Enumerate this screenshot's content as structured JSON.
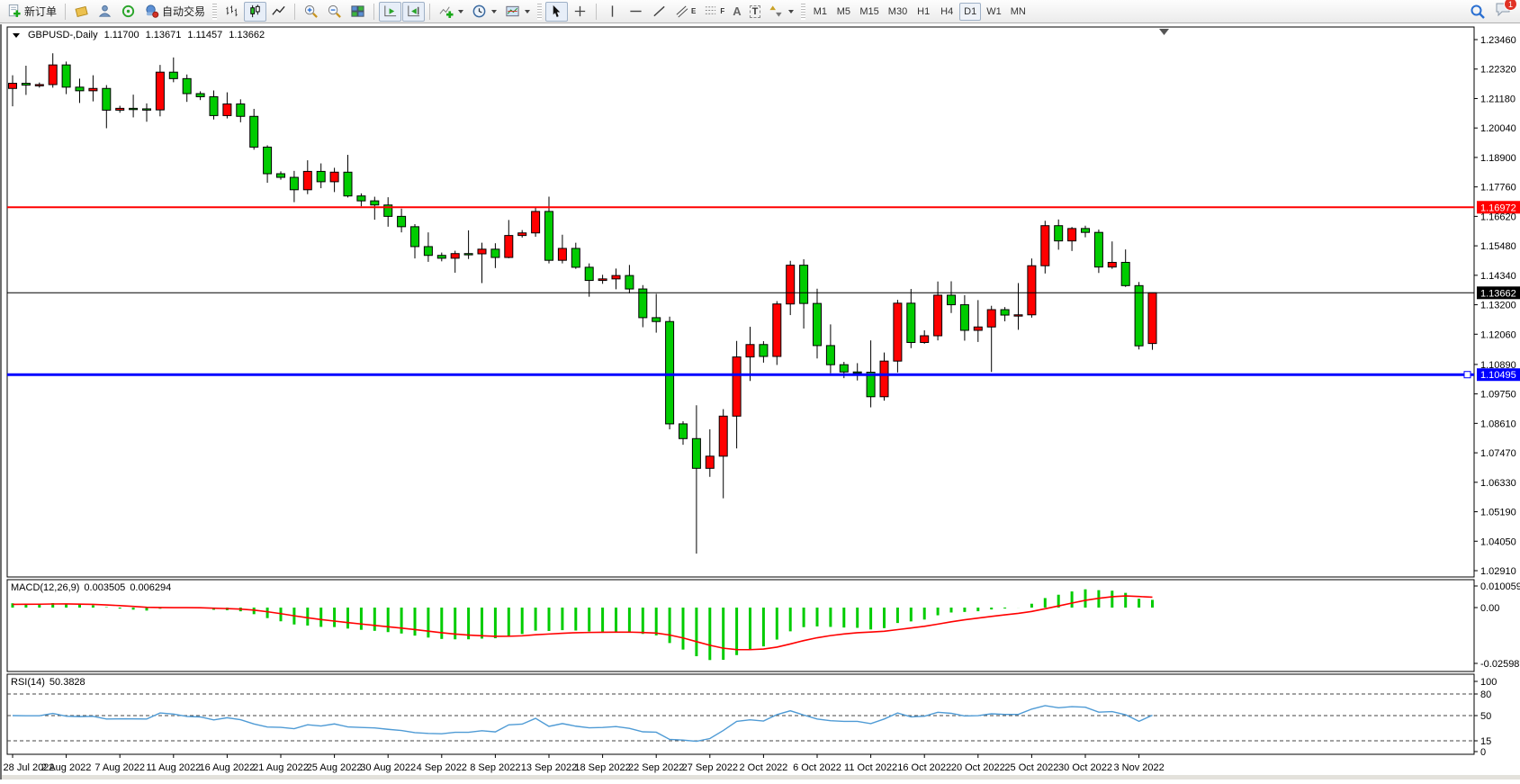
{
  "toolbar": {
    "new_order_label": "新订单",
    "autotrading_label": "自动交易",
    "timeframes": [
      "M1",
      "M5",
      "M15",
      "M30",
      "H1",
      "H4",
      "D1",
      "W1",
      "MN"
    ],
    "active_timeframe": "D1",
    "notification_count": "1",
    "glyphs": {
      "text_tool": "A",
      "label_tool": "T",
      "channel_sub": "E",
      "fibo_sub": "F"
    },
    "icons": [
      "new-order",
      "quotes",
      "profiles",
      "signals",
      "autotrading",
      "bar-chart",
      "candlestick-chart",
      "line-chart",
      "zoom-in",
      "zoom-out",
      "tile-windows",
      "auto-scroll",
      "chart-shift",
      "indicators",
      "periods",
      "templates",
      "cursor",
      "crosshair",
      "vertical-line",
      "horizontal-line",
      "trendline",
      "equidistant-channel",
      "fibonacci",
      "text",
      "text-label",
      "arrows",
      "search",
      "chat"
    ]
  },
  "chart": {
    "title": {
      "symbol_period": "GBPUSD-,Daily",
      "open": "1.11700",
      "high": "1.13671",
      "low": "1.11457",
      "close": "1.13662"
    },
    "price_axis": {
      "ticks": [
        "1.23460",
        "1.22320",
        "1.21180",
        "1.20040",
        "1.18900",
        "1.17760",
        "1.16620",
        "1.15480",
        "1.14340",
        "1.13200",
        "1.12060",
        "1.10890",
        "1.09750",
        "1.08610",
        "1.07470",
        "1.06330",
        "1.05190",
        "1.04050",
        "1.02910"
      ]
    },
    "hlines": [
      {
        "name": "resistance-line",
        "label": "1.16972",
        "price": 1.16972,
        "color": "#FF0000",
        "width": 2,
        "handle": false
      },
      {
        "name": "current-price-line",
        "label": "1.13662",
        "price": 1.13662,
        "color": "#000000",
        "width": 1,
        "handle": false
      },
      {
        "name": "support-line",
        "label": "1.10495",
        "price": 1.10495,
        "color": "#0000FF",
        "width": 3,
        "handle": true
      }
    ],
    "macd_panel": {
      "label": "MACD(12,26,9)",
      "value_main": "0.003505",
      "value_signal": "0.006294",
      "axis": [
        "0.010059",
        "0.00",
        "-0.025987"
      ],
      "max": 0.010059,
      "min": -0.025987,
      "histogram_color": "#00CC00",
      "signal_color": "#FF0000"
    },
    "rsi_panel": {
      "label": "RSI(14)",
      "value": "50.3828",
      "axis": [
        "100",
        "80",
        "50",
        "15",
        "0"
      ],
      "levels": [
        80,
        50,
        15
      ],
      "line_color": "#4F9BD5"
    },
    "time_axis": [
      "28 Jul 2022",
      "2 Aug 2022",
      "7 Aug 2022",
      "11 Aug 2022",
      "16 Aug 2022",
      "21 Aug 2022",
      "25 Aug 2022",
      "30 Aug 2022",
      "4 Sep 2022",
      "8 Sep 2022",
      "13 Sep 2022",
      "18 Sep 2022",
      "22 Sep 2022",
      "27 Sep 2022",
      "2 Oct 2022",
      "6 Oct 2022",
      "11 Oct 2022",
      "16 Oct 2022",
      "20 Oct 2022",
      "25 Oct 2022",
      "30 Oct 2022",
      "3 Nov 2022"
    ],
    "label_every_n_bars": 4
  },
  "chart_data": {
    "type": "candlestick",
    "symbol": "GBPUSD-",
    "period": "Daily",
    "up_color": "#FF0000",
    "down_color": "#00CC00",
    "wick_color": "#000000",
    "price_range": [
      1.0291,
      1.2346
    ],
    "candles": [
      [
        "28 Jul 2022",
        1.2157,
        1.2208,
        1.2088,
        1.2177
      ],
      [
        "29 Jul 2022",
        1.2177,
        1.2245,
        1.2132,
        1.217
      ],
      [
        "31 Jul 2022",
        1.217,
        1.218,
        1.216,
        1.2172
      ],
      [
        "1 Aug 2022",
        1.2172,
        1.2293,
        1.216,
        1.2248
      ],
      [
        "2 Aug 2022",
        1.2248,
        1.2261,
        1.2135,
        1.2162
      ],
      [
        "3 Aug 2022",
        1.2162,
        1.2195,
        1.2101,
        1.2148
      ],
      [
        "4 Aug 2022",
        1.2148,
        1.2208,
        1.2107,
        1.2157
      ],
      [
        "5 Aug 2022",
        1.2157,
        1.217,
        1.2003,
        1.2073
      ],
      [
        "7 Aug 2022",
        1.2073,
        1.209,
        1.2063,
        1.208
      ],
      [
        "8 Aug 2022",
        1.208,
        1.2133,
        1.2045,
        1.2078
      ],
      [
        "9 Aug 2022",
        1.2078,
        1.2099,
        1.2028,
        1.2074
      ],
      [
        "10 Aug 2022",
        1.2074,
        1.2248,
        1.2049,
        1.222
      ],
      [
        "11 Aug 2022",
        1.222,
        1.2277,
        1.2181,
        1.2195
      ],
      [
        "12 Aug 2022",
        1.2195,
        1.2211,
        1.2105,
        1.2137
      ],
      [
        "14 Aug 2022",
        1.2137,
        1.2146,
        1.2112,
        1.2125
      ],
      [
        "15 Aug 2022",
        1.2125,
        1.2149,
        1.2037,
        1.2052
      ],
      [
        "16 Aug 2022",
        1.2052,
        1.2142,
        1.2041,
        1.2097
      ],
      [
        "17 Aug 2022",
        1.2097,
        1.2115,
        1.2026,
        1.2049
      ],
      [
        "18 Aug 2022",
        1.2049,
        1.2078,
        1.192,
        1.193
      ],
      [
        "19 Aug 2022",
        1.193,
        1.1937,
        1.1792,
        1.1827
      ],
      [
        "21 Aug 2022",
        1.1827,
        1.1836,
        1.1804,
        1.1813
      ],
      [
        "22 Aug 2022",
        1.1813,
        1.1838,
        1.1717,
        1.1765
      ],
      [
        "23 Aug 2022",
        1.1765,
        1.1879,
        1.1748,
        1.1836
      ],
      [
        "24 Aug 2022",
        1.1836,
        1.1867,
        1.1771,
        1.1796
      ],
      [
        "25 Aug 2022",
        1.1796,
        1.185,
        1.1756,
        1.1833
      ],
      [
        "26 Aug 2022",
        1.1833,
        1.19,
        1.1735,
        1.1741
      ],
      [
        "28 Aug 2022",
        1.1741,
        1.1751,
        1.1701,
        1.1722
      ],
      [
        "29 Aug 2022",
        1.1722,
        1.1738,
        1.1649,
        1.1706
      ],
      [
        "30 Aug 2022",
        1.1706,
        1.1736,
        1.1622,
        1.1662
      ],
      [
        "31 Aug 2022",
        1.1662,
        1.1692,
        1.16,
        1.1622
      ],
      [
        "1 Sep 2022",
        1.1622,
        1.1632,
        1.1499,
        1.1545
      ],
      [
        "2 Sep 2022",
        1.1545,
        1.16,
        1.1486,
        1.1511
      ],
      [
        "4 Sep 2022",
        1.1511,
        1.1522,
        1.1488,
        1.15
      ],
      [
        "5 Sep 2022",
        1.15,
        1.1529,
        1.1444,
        1.1518
      ],
      [
        "6 Sep 2022",
        1.1518,
        1.1608,
        1.1497,
        1.1517
      ],
      [
        "7 Sep 2022",
        1.1517,
        1.156,
        1.1404,
        1.1535
      ],
      [
        "8 Sep 2022",
        1.1535,
        1.1558,
        1.1462,
        1.1503
      ],
      [
        "9 Sep 2022",
        1.1503,
        1.1648,
        1.15,
        1.1588
      ],
      [
        "11 Sep 2022",
        1.1588,
        1.1609,
        1.158,
        1.1598
      ],
      [
        "12 Sep 2022",
        1.1598,
        1.1699,
        1.1583,
        1.1681
      ],
      [
        "13 Sep 2022",
        1.1681,
        1.1738,
        1.148,
        1.1492
      ],
      [
        "14 Sep 2022",
        1.1492,
        1.1591,
        1.148,
        1.1538
      ],
      [
        "15 Sep 2022",
        1.1538,
        1.156,
        1.1459,
        1.1465
      ],
      [
        "16 Sep 2022",
        1.1465,
        1.148,
        1.1351,
        1.1414
      ],
      [
        "18 Sep 2022",
        1.1414,
        1.1436,
        1.1401,
        1.142
      ],
      [
        "19 Sep 2022",
        1.142,
        1.146,
        1.138,
        1.1433
      ],
      [
        "20 Sep 2022",
        1.1433,
        1.1474,
        1.1364,
        1.1381
      ],
      [
        "21 Sep 2022",
        1.1381,
        1.1396,
        1.1233,
        1.127
      ],
      [
        "22 Sep 2022",
        1.127,
        1.1362,
        1.1212,
        1.1255
      ],
      [
        "23 Sep 2022",
        1.1255,
        1.1274,
        1.0838,
        1.0859
      ],
      [
        "25 Sep 2022",
        1.0859,
        1.0869,
        1.0778,
        1.0802
      ],
      [
        "26 Sep 2022",
        1.0802,
        1.0931,
        1.0357,
        1.0687
      ],
      [
        "27 Sep 2022",
        1.0687,
        1.0838,
        1.0654,
        1.0734
      ],
      [
        "28 Sep 2022",
        1.0734,
        1.0916,
        1.0571,
        1.0889
      ],
      [
        "29 Sep 2022",
        1.0889,
        1.118,
        1.0764,
        1.1118
      ],
      [
        "30 Sep 2022",
        1.1118,
        1.1235,
        1.1025,
        1.1166
      ],
      [
        "2 Oct 2022",
        1.1166,
        1.1179,
        1.1096,
        1.112
      ],
      [
        "3 Oct 2022",
        1.112,
        1.1334,
        1.1087,
        1.1323
      ],
      [
        "4 Oct 2022",
        1.1323,
        1.149,
        1.128,
        1.1473
      ],
      [
        "5 Oct 2022",
        1.1473,
        1.1496,
        1.1228,
        1.1325
      ],
      [
        "6 Oct 2022",
        1.1325,
        1.1382,
        1.1112,
        1.1162
      ],
      [
        "7 Oct 2022",
        1.1162,
        1.1244,
        1.1055,
        1.1088
      ],
      [
        "9 Oct 2022",
        1.1088,
        1.1099,
        1.1036,
        1.106
      ],
      [
        "10 Oct 2022",
        1.106,
        1.1094,
        1.1027,
        1.1059
      ],
      [
        "11 Oct 2022",
        1.1059,
        1.1182,
        1.0923,
        1.0964
      ],
      [
        "12 Oct 2022",
        1.0964,
        1.1135,
        1.0949,
        1.1102
      ],
      [
        "13 Oct 2022",
        1.1102,
        1.1339,
        1.1058,
        1.1326
      ],
      [
        "14 Oct 2022",
        1.1326,
        1.1381,
        1.1152,
        1.1174
      ],
      [
        "16 Oct 2022",
        1.1174,
        1.1221,
        1.1169,
        1.12
      ],
      [
        "17 Oct 2022",
        1.12,
        1.141,
        1.1182,
        1.1357
      ],
      [
        "18 Oct 2022",
        1.1357,
        1.1411,
        1.1288,
        1.132
      ],
      [
        "19 Oct 2022",
        1.132,
        1.1357,
        1.1181,
        1.1221
      ],
      [
        "20 Oct 2022",
        1.1221,
        1.1338,
        1.1176,
        1.1234
      ],
      [
        "21 Oct 2022",
        1.1234,
        1.1316,
        1.106,
        1.1301
      ],
      [
        "23 Oct 2022",
        1.1301,
        1.1311,
        1.1256,
        1.128
      ],
      [
        "24 Oct 2022",
        1.128,
        1.1404,
        1.1223,
        1.1281
      ],
      [
        "25 Oct 2022",
        1.1281,
        1.1499,
        1.127,
        1.1471
      ],
      [
        "26 Oct 2022",
        1.1471,
        1.1645,
        1.1441,
        1.1626
      ],
      [
        "27 Oct 2022",
        1.1626,
        1.165,
        1.1533,
        1.1567
      ],
      [
        "28 Oct 2022",
        1.1567,
        1.1621,
        1.1528,
        1.1615
      ],
      [
        "30 Oct 2022",
        1.1615,
        1.1626,
        1.1581,
        1.16
      ],
      [
        "31 Oct 2022",
        1.16,
        1.1611,
        1.1443,
        1.1466
      ],
      [
        "1 Nov 2022",
        1.1466,
        1.1565,
        1.1459,
        1.1484
      ],
      [
        "2 Nov 2022",
        1.1484,
        1.1534,
        1.1389,
        1.1394
      ],
      [
        "3 Nov 2022",
        1.1394,
        1.1408,
        1.1147,
        1.1161
      ],
      [
        "4 Nov 2022",
        1.117,
        1.13671,
        1.11457,
        1.13662
      ]
    ],
    "indicators": [
      {
        "name": "MACD",
        "params": [
          12,
          26,
          9
        ],
        "main": 0.003505,
        "signal": 0.006294,
        "axis_max": 0.010059,
        "axis_min": -0.025987
      },
      {
        "name": "RSI",
        "params": [
          14
        ],
        "value": 50.3828,
        "levels": [
          80,
          50,
          15
        ],
        "range": [
          0,
          100
        ]
      }
    ]
  }
}
